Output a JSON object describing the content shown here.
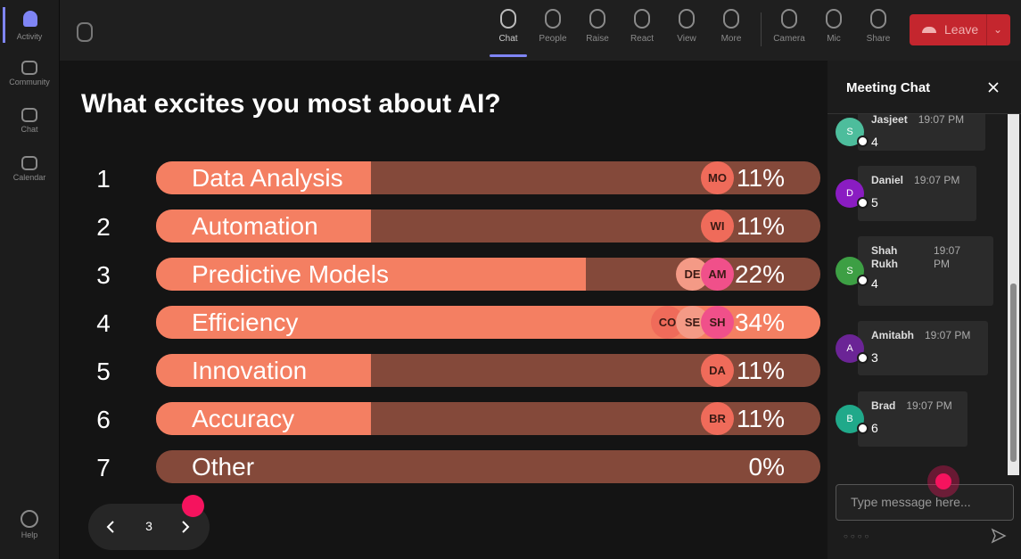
{
  "sidebar": {
    "items": [
      "Activity",
      "Community",
      "Chat",
      "Calendar"
    ],
    "help": "Help"
  },
  "toolbar": {
    "items": [
      "Chat",
      "People",
      "Raise",
      "React",
      "View",
      "More",
      "Camera",
      "Mic",
      "Share"
    ],
    "leave": "Leave"
  },
  "poll": {
    "question": "What excites you most about AI?",
    "options": [
      {
        "rank": 1,
        "label": "Data Analysis",
        "percent": 11,
        "percent_label": "11%",
        "avatars": [
          "MO"
        ]
      },
      {
        "rank": 2,
        "label": "Automation",
        "percent": 11,
        "percent_label": "11%",
        "avatars": [
          "WI"
        ]
      },
      {
        "rank": 3,
        "label": "Predictive Models",
        "percent": 22,
        "percent_label": "22%",
        "avatars": [
          "DE",
          "AM"
        ]
      },
      {
        "rank": 4,
        "label": "Efficiency",
        "percent": 34,
        "percent_label": "34%",
        "avatars": [
          "CO",
          "SE",
          "SH"
        ]
      },
      {
        "rank": 5,
        "label": "Innovation",
        "percent": 11,
        "percent_label": "11%",
        "avatars": [
          "DA"
        ]
      },
      {
        "rank": 6,
        "label": "Accuracy",
        "percent": 11,
        "percent_label": "11%",
        "avatars": [
          "BR"
        ]
      },
      {
        "rank": 7,
        "label": "Other",
        "percent": 0,
        "percent_label": "0%",
        "avatars": []
      }
    ]
  },
  "pager": {
    "page": 3
  },
  "chat": {
    "title": "Meeting Chat",
    "messages": [
      {
        "initial": "S",
        "name": "Jasjeet",
        "time": "19:07 PM",
        "text": "4",
        "color": "#4dbd9c"
      },
      {
        "initial": "D",
        "name": "Daniel",
        "time": "19:07 PM",
        "text": "5",
        "color": "#8a1cc2"
      },
      {
        "initial": "S",
        "name": "Shah Rukh",
        "time": "19:07 PM",
        "text": "4",
        "color": "#3d9f44"
      },
      {
        "initial": "A",
        "name": "Amitabh",
        "time": "19:07 PM",
        "text": "3",
        "color": "#6b2496"
      },
      {
        "initial": "B",
        "name": "Brad",
        "time": "19:07 PM",
        "text": "6",
        "color": "#20a98a"
      }
    ],
    "placeholder": "Type message here..."
  }
}
